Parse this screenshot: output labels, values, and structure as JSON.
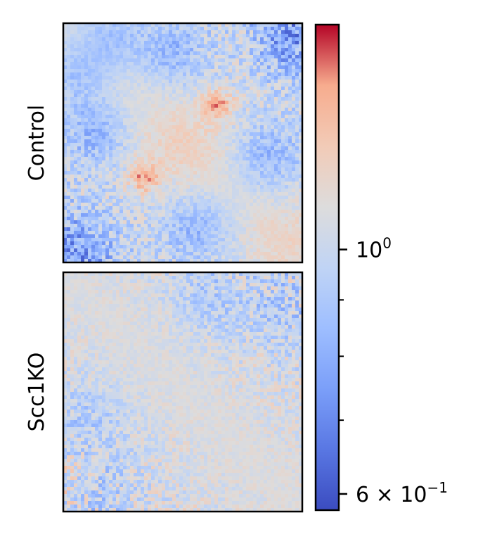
{
  "chart_data": {
    "type": "heatmap",
    "panels": [
      {
        "row_label": "Control"
      },
      {
        "row_label": "Scc1KO"
      }
    ],
    "colorbar": {
      "colormap": "coolwarm",
      "scale": "log",
      "range": [
        0.58,
        1.6
      ],
      "major_ticks": [
        {
          "value": 1.0,
          "label": "10",
          "exponent": "0"
        },
        {
          "value": 0.6,
          "label": "6 × 10",
          "exponent": "−1"
        }
      ],
      "minor_ticks": [
        0.7,
        0.8,
        0.9
      ]
    },
    "grid": false
  }
}
